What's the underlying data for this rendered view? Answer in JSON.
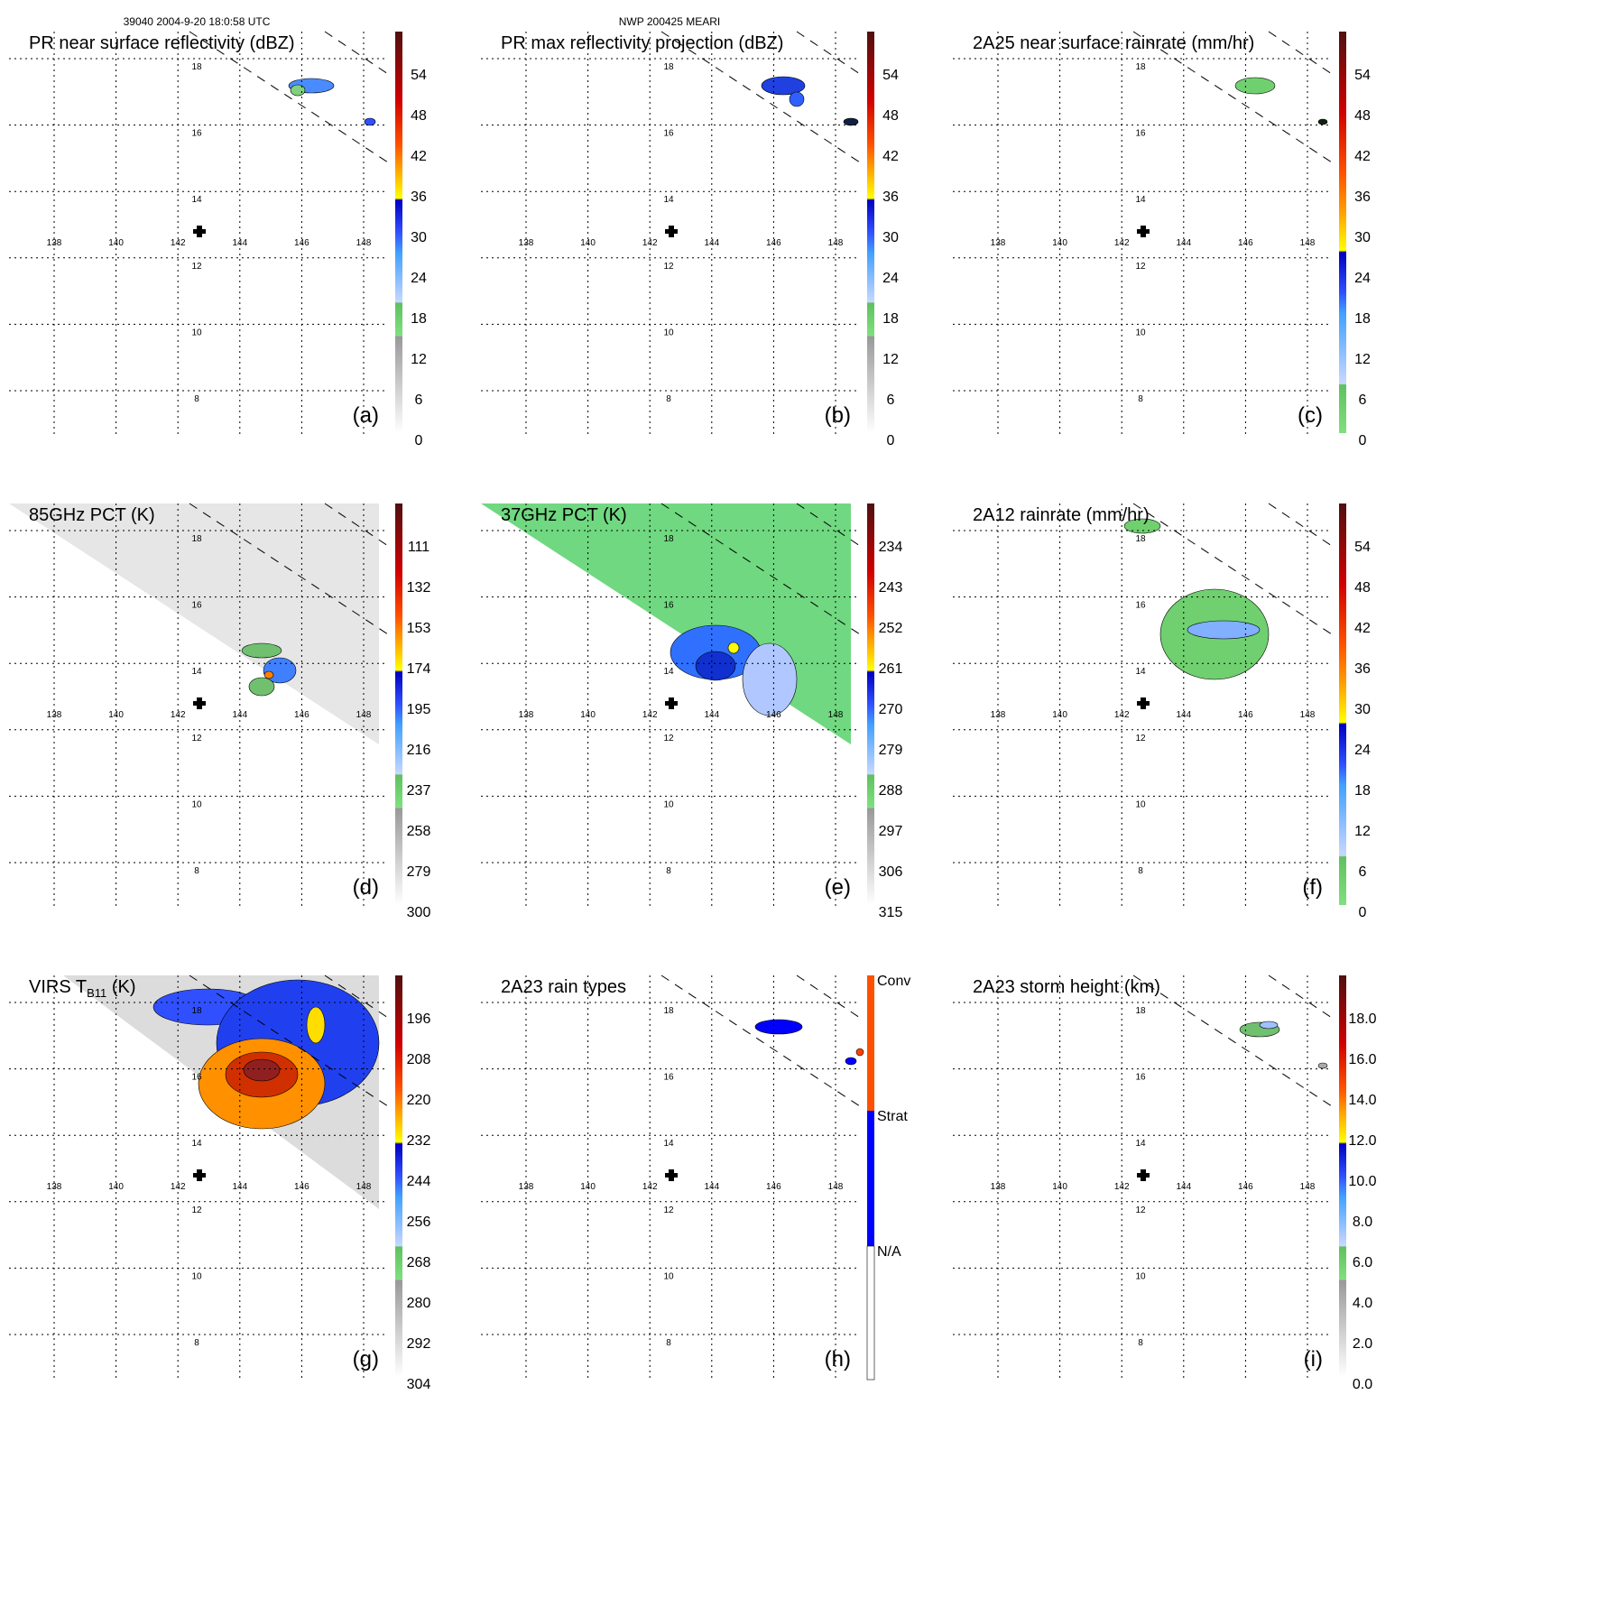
{
  "header": {
    "orbit_time": "39040 2004-9-20 18:0:58 UTC",
    "storm": "NWP 200425 MEARI"
  },
  "chart_data": {
    "type": "heatmap",
    "layout": "3x3 map panels",
    "lon_ticks": [
      138,
      140,
      142,
      144,
      146,
      148
    ],
    "lat_ticks": [
      18,
      16,
      14,
      12,
      10,
      8
    ],
    "storm_center_marker": "+",
    "panels": [
      {
        "id": "a",
        "title": "PR near surface reflectivity (dBZ)",
        "label": "(a)",
        "colorbar": "std",
        "ticks": [
          "0",
          "6",
          "12",
          "18",
          "24",
          "30",
          "36",
          "42",
          "48",
          "54"
        ]
      },
      {
        "id": "b",
        "title": "PR max reflectivity projection (dBZ)",
        "label": "(b)",
        "colorbar": "std",
        "ticks": [
          "0",
          "6",
          "12",
          "18",
          "24",
          "30",
          "36",
          "42",
          "48",
          "54"
        ]
      },
      {
        "id": "c",
        "title": "2A25 near surface rainrate (mm/hr)",
        "label": "(c)",
        "colorbar": "rain",
        "ticks": [
          "0",
          "6",
          "12",
          "18",
          "24",
          "30",
          "36",
          "42",
          "48",
          "54"
        ]
      },
      {
        "id": "d",
        "title": "85GHz PCT (K)",
        "label": "(d)",
        "colorbar": "std",
        "ticks": [
          "300",
          "279",
          "258",
          "237",
          "216",
          "195",
          "174",
          "153",
          "132",
          "111"
        ]
      },
      {
        "id": "e",
        "title": "37GHz PCT (K)",
        "label": "(e)",
        "colorbar": "std",
        "ticks": [
          "315",
          "306",
          "297",
          "288",
          "279",
          "270",
          "261",
          "252",
          "243",
          "234"
        ]
      },
      {
        "id": "f",
        "title": "2A12 rainrate (mm/hr)",
        "label": "(f)",
        "colorbar": "rain",
        "ticks": [
          "0",
          "6",
          "12",
          "18",
          "24",
          "30",
          "36",
          "42",
          "48",
          "54"
        ]
      },
      {
        "id": "g",
        "title": "VIRS T",
        "title_sub": "B11",
        "title_end": " (K)",
        "label": "(g)",
        "colorbar": "std",
        "ticks": [
          "304",
          "292",
          "280",
          "268",
          "256",
          "244",
          "232",
          "220",
          "208",
          "196"
        ]
      },
      {
        "id": "h",
        "title": "2A23 rain types",
        "label": "(h)",
        "colorbar": "types",
        "ticks": [
          "N/A",
          "Strat",
          "Conv"
        ]
      },
      {
        "id": "i",
        "title": "2A23 storm height (km)",
        "label": "(i)",
        "colorbar": "std",
        "ticks": [
          "0.0",
          "2.0",
          "4.0",
          "6.0",
          "8.0",
          "10.0",
          "12.0",
          "14.0",
          "16.0",
          "18.0"
        ]
      }
    ]
  }
}
